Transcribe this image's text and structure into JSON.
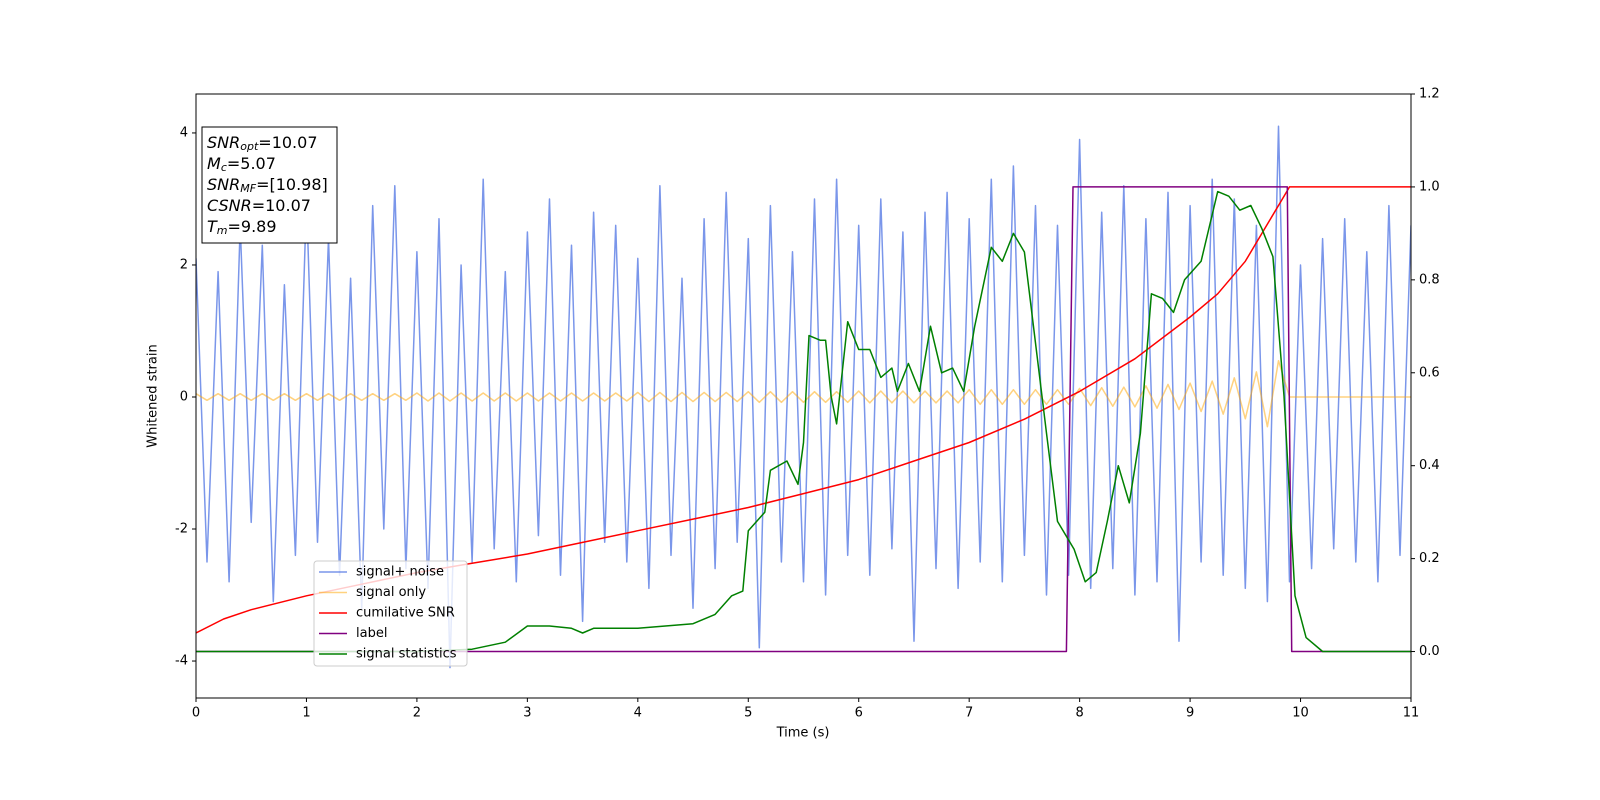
{
  "chart_data": {
    "type": "line",
    "xlabel": "Time (s)",
    "ylabel": "Whitened strain",
    "xlim": [
      0,
      11
    ],
    "xticks": [
      0,
      1,
      2,
      3,
      4,
      5,
      6,
      7,
      8,
      9,
      10,
      11
    ],
    "ylim": [
      -4.56,
      4.59
    ],
    "yticks": [
      -4,
      -2,
      0,
      2,
      4
    ],
    "y2lim": [
      -0.1,
      1.2
    ],
    "y2ticks": [
      {
        "value": 0,
        "label": "0.0"
      },
      0.2,
      0.4,
      0.6,
      0.8,
      {
        "value": 1,
        "label": "1.0"
      },
      1.2
    ],
    "legend": "lower left",
    "textbox": [
      {
        "sym": "SNR",
        "sub": "opt",
        "val": "=10.07"
      },
      {
        "sym": "M",
        "sub": "c",
        "val": "=5.07"
      },
      {
        "sym": "SNR",
        "sub": "MF",
        "val": "=[10.98]"
      },
      {
        "sym": "CSNR",
        "sub": "",
        "val": "=10.07"
      },
      {
        "sym": "T",
        "sub": "m",
        "val": "=9.89"
      }
    ],
    "series": [
      {
        "name": "signal+ noise",
        "color": "#4169e1",
        "alpha": 0.7,
        "axis": "y",
        "x": [
          0,
          0.1,
          0.2,
          0.3,
          0.4,
          0.5,
          0.6,
          0.7,
          0.8,
          0.9,
          1,
          1.1,
          1.2,
          1.3,
          1.4,
          1.5,
          1.6,
          1.7,
          1.8,
          1.9,
          2,
          2.1,
          2.2,
          2.3,
          2.4,
          2.5,
          2.6,
          2.7,
          2.8,
          2.9,
          3,
          3.1,
          3.2,
          3.3,
          3.4,
          3.5,
          3.6,
          3.7,
          3.8,
          3.9,
          4,
          4.1,
          4.2,
          4.3,
          4.4,
          4.5,
          4.6,
          4.7,
          4.8,
          4.9,
          5,
          5.1,
          5.2,
          5.3,
          5.4,
          5.5,
          5.6,
          5.7,
          5.8,
          5.9,
          6,
          6.1,
          6.2,
          6.3,
          6.4,
          6.5,
          6.6,
          6.7,
          6.8,
          6.9,
          7,
          7.1,
          7.2,
          7.3,
          7.4,
          7.5,
          7.6,
          7.7,
          7.8,
          7.9,
          8,
          8.1,
          8.2,
          8.3,
          8.4,
          8.5,
          8.6,
          8.7,
          8.8,
          8.9,
          9,
          9.1,
          9.2,
          9.3,
          9.4,
          9.5,
          9.6,
          9.7,
          9.8,
          9.9,
          10,
          10.1,
          10.2,
          10.3,
          10.4,
          10.5,
          10.6,
          10.7,
          10.8,
          10.9,
          11
        ],
        "values": [
          2.1,
          -2.5,
          1.9,
          -2.8,
          2.6,
          -1.9,
          2.3,
          -3.1,
          1.7,
          -2.4,
          3.0,
          -2.2,
          2.4,
          -2.7,
          1.8,
          -3.2,
          2.9,
          -2.0,
          3.2,
          -2.6,
          2.2,
          -2.9,
          2.7,
          -4.1,
          2.0,
          -2.5,
          3.3,
          -2.3,
          1.9,
          -2.8,
          2.5,
          -2.1,
          3.0,
          -2.7,
          2.3,
          -3.4,
          2.8,
          -2.2,
          2.6,
          -2.5,
          2.1,
          -2.9,
          3.2,
          -2.4,
          1.8,
          -3.2,
          2.7,
          -2.6,
          3.1,
          -2.2,
          2.4,
          -3.8,
          2.9,
          -2.5,
          2.2,
          -2.8,
          3.0,
          -3.0,
          3.3,
          -2.4,
          2.6,
          -2.7,
          3.0,
          -2.3,
          2.5,
          -3.7,
          2.8,
          -2.6,
          3.1,
          -2.9,
          2.7,
          -2.5,
          3.3,
          -2.8,
          3.5,
          -2.4,
          2.9,
          -3.0,
          2.6,
          -2.7,
          3.9,
          -2.9,
          2.8,
          -2.6,
          3.2,
          -3.0,
          2.7,
          -2.8,
          3.1,
          -3.7,
          2.9,
          -2.5,
          3.3,
          -2.7,
          3.0,
          -2.9,
          2.6,
          -3.1,
          4.1,
          -2.8,
          2.0,
          -2.6,
          2.4,
          -2.3,
          2.7,
          -2.5,
          2.2,
          -2.8,
          2.9,
          -2.4,
          2.6
        ]
      },
      {
        "name": "signal only",
        "color": "#ffa500",
        "alpha": 0.5,
        "axis": "y",
        "x": [
          0,
          0.1,
          0.2,
          0.3,
          0.4,
          0.5,
          0.6,
          0.7,
          0.8,
          0.9,
          1,
          1.1,
          1.2,
          1.3,
          1.4,
          1.5,
          1.6,
          1.7,
          1.8,
          1.9,
          2,
          2.1,
          2.2,
          2.3,
          2.4,
          2.5,
          2.6,
          2.7,
          2.8,
          2.9,
          3,
          3.1,
          3.2,
          3.3,
          3.4,
          3.5,
          3.6,
          3.7,
          3.8,
          3.9,
          4,
          4.1,
          4.2,
          4.3,
          4.4,
          4.5,
          4.6,
          4.7,
          4.8,
          4.9,
          5,
          5.1,
          5.2,
          5.3,
          5.4,
          5.5,
          5.6,
          5.7,
          5.8,
          5.9,
          6,
          6.1,
          6.2,
          6.3,
          6.4,
          6.5,
          6.6,
          6.7,
          6.8,
          6.9,
          7,
          7.1,
          7.2,
          7.3,
          7.4,
          7.5,
          7.6,
          7.7,
          7.8,
          7.9,
          8,
          8.1,
          8.2,
          8.3,
          8.4,
          8.5,
          8.6,
          8.7,
          8.8,
          8.9,
          9,
          9.1,
          9.2,
          9.3,
          9.4,
          9.5,
          9.6,
          9.7,
          9.8,
          9.9,
          10,
          10.1,
          10.2,
          10.3,
          10.4,
          10.5,
          10.6,
          10.7,
          10.8,
          10.9,
          11
        ],
        "values": [
          0.05,
          -0.05,
          0.05,
          -0.05,
          0.05,
          -0.05,
          0.05,
          -0.05,
          0.05,
          -0.05,
          0.05,
          -0.05,
          0.05,
          -0.05,
          0.05,
          -0.05,
          0.05,
          -0.05,
          0.05,
          -0.05,
          0.06,
          -0.06,
          0.06,
          -0.06,
          0.06,
          -0.06,
          0.06,
          -0.06,
          0.06,
          -0.06,
          0.06,
          -0.06,
          0.06,
          -0.06,
          0.06,
          -0.06,
          0.06,
          -0.06,
          0.06,
          -0.06,
          0.07,
          -0.07,
          0.07,
          -0.07,
          0.07,
          -0.07,
          0.07,
          -0.07,
          0.07,
          -0.07,
          0.08,
          -0.08,
          0.08,
          -0.08,
          0.08,
          -0.08,
          0.08,
          -0.08,
          0.08,
          -0.08,
          0.09,
          -0.09,
          0.09,
          -0.09,
          0.09,
          -0.09,
          0.09,
          -0.09,
          0.09,
          -0.09,
          0.11,
          -0.11,
          0.11,
          -0.11,
          0.11,
          -0.11,
          0.11,
          -0.11,
          0.11,
          -0.11,
          0.13,
          -0.13,
          0.14,
          -0.14,
          0.15,
          -0.15,
          0.17,
          -0.17,
          0.19,
          -0.19,
          0.21,
          -0.22,
          0.24,
          -0.26,
          0.29,
          -0.33,
          0.38,
          -0.45,
          0.55,
          0,
          0,
          0,
          0,
          0,
          0,
          0,
          0,
          0,
          0,
          0,
          0
        ]
      },
      {
        "name": "cumilative SNR",
        "color": "#ff0000",
        "alpha": 1,
        "axis": "y2",
        "x": [
          0,
          0.25,
          0.5,
          1,
          1.5,
          2,
          2.5,
          3,
          3.5,
          4,
          4.5,
          5,
          5.5,
          6,
          6.5,
          7,
          7.5,
          8,
          8.5,
          9,
          9.25,
          9.5,
          9.7,
          9.85,
          9.9,
          11
        ],
        "values": [
          0.04,
          0.07,
          0.09,
          0.12,
          0.145,
          0.17,
          0.19,
          0.21,
          0.235,
          0.26,
          0.285,
          0.31,
          0.34,
          0.37,
          0.41,
          0.45,
          0.5,
          0.56,
          0.63,
          0.72,
          0.77,
          0.84,
          0.92,
          0.98,
          1.0,
          1.0
        ]
      },
      {
        "name": "label",
        "color": "#800080",
        "alpha": 1,
        "axis": "y2",
        "x": [
          0,
          7.88,
          7.94,
          9.88,
          9.92,
          11
        ],
        "values": [
          0,
          0,
          1,
          1,
          0,
          0
        ]
      },
      {
        "name": "signal statistics",
        "color": "#008000",
        "alpha": 1,
        "axis": "y2",
        "x": [
          0,
          1,
          2,
          2.5,
          2.8,
          3,
          3.2,
          3.4,
          3.5,
          3.6,
          4,
          4.5,
          4.7,
          4.85,
          4.95,
          5,
          5.15,
          5.2,
          5.35,
          5.45,
          5.5,
          5.55,
          5.65,
          5.7,
          5.75,
          5.8,
          5.9,
          6,
          6.1,
          6.2,
          6.3,
          6.35,
          6.45,
          6.55,
          6.65,
          6.75,
          6.85,
          6.95,
          7.05,
          7.2,
          7.3,
          7.4,
          7.5,
          7.7,
          7.8,
          7.95,
          8.05,
          8.15,
          8.25,
          8.35,
          8.45,
          8.55,
          8.65,
          8.75,
          8.85,
          8.95,
          9.1,
          9.25,
          9.35,
          9.45,
          9.55,
          9.65,
          9.75,
          9.85,
          9.95,
          10.05,
          10.2,
          11
        ],
        "values": [
          0,
          0,
          0,
          0.005,
          0.02,
          0.055,
          0.055,
          0.05,
          0.04,
          0.05,
          0.05,
          0.06,
          0.08,
          0.12,
          0.13,
          0.26,
          0.3,
          0.39,
          0.41,
          0.36,
          0.45,
          0.68,
          0.67,
          0.67,
          0.55,
          0.49,
          0.71,
          0.65,
          0.65,
          0.59,
          0.61,
          0.56,
          0.62,
          0.56,
          0.7,
          0.6,
          0.61,
          0.56,
          0.7,
          0.87,
          0.84,
          0.9,
          0.86,
          0.47,
          0.28,
          0.22,
          0.15,
          0.17,
          0.28,
          0.4,
          0.32,
          0.47,
          0.77,
          0.76,
          0.73,
          0.8,
          0.84,
          0.99,
          0.98,
          0.95,
          0.96,
          0.91,
          0.85,
          0.55,
          0.12,
          0.03,
          0,
          0
        ]
      }
    ]
  }
}
